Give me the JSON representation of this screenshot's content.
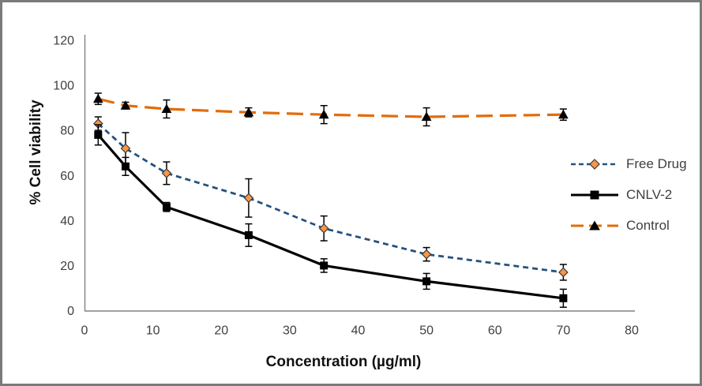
{
  "chart_data": {
    "type": "line",
    "title": "",
    "xlabel": "Concentration (µg/ml)",
    "ylabel": "% Cell viability",
    "xlim": [
      0,
      80
    ],
    "ylim": [
      0,
      120
    ],
    "x_ticks": [
      0,
      10,
      20,
      30,
      40,
      50,
      60,
      70,
      80
    ],
    "y_ticks": [
      0,
      20,
      40,
      60,
      80,
      100,
      120
    ],
    "grid": false,
    "legend_position": "right",
    "error_bars": true,
    "x": [
      2,
      6,
      12,
      24,
      35,
      50,
      70
    ],
    "series": [
      {
        "name": "Free Drug",
        "values": [
          83,
          72,
          61,
          50,
          36.5,
          25,
          17
        ],
        "errors": [
          3,
          7,
          5,
          8.5,
          5.5,
          3,
          3.5
        ],
        "line_color": "#24527F",
        "line_style": "dashed",
        "marker": "diamond",
        "marker_fill": "#F79646",
        "marker_stroke": "#3a3a3a"
      },
      {
        "name": "CNLV-2",
        "values": [
          78,
          64,
          46,
          33.5,
          20,
          13,
          5.5
        ],
        "errors": [
          4.5,
          4,
          2,
          5,
          3,
          3.5,
          4
        ],
        "line_color": "#000000",
        "line_style": "solid",
        "marker": "square",
        "marker_fill": "#000000",
        "marker_stroke": "#000000"
      },
      {
        "name": "Control",
        "values": [
          94,
          91,
          89.5,
          88,
          87,
          86,
          87
        ],
        "errors": [
          2.5,
          1.5,
          4,
          2,
          4,
          4,
          2.5
        ],
        "line_color": "#E36C0A",
        "line_style": "long-dash",
        "marker": "triangle",
        "marker_fill": "#000000",
        "marker_stroke": "#000000"
      }
    ],
    "colors": {
      "axis_line": "#808080",
      "tick_text": "#3f3f3f",
      "error_bar": "#000000",
      "frame_border": "#7a7a7a",
      "background": "#ffffff"
    }
  }
}
